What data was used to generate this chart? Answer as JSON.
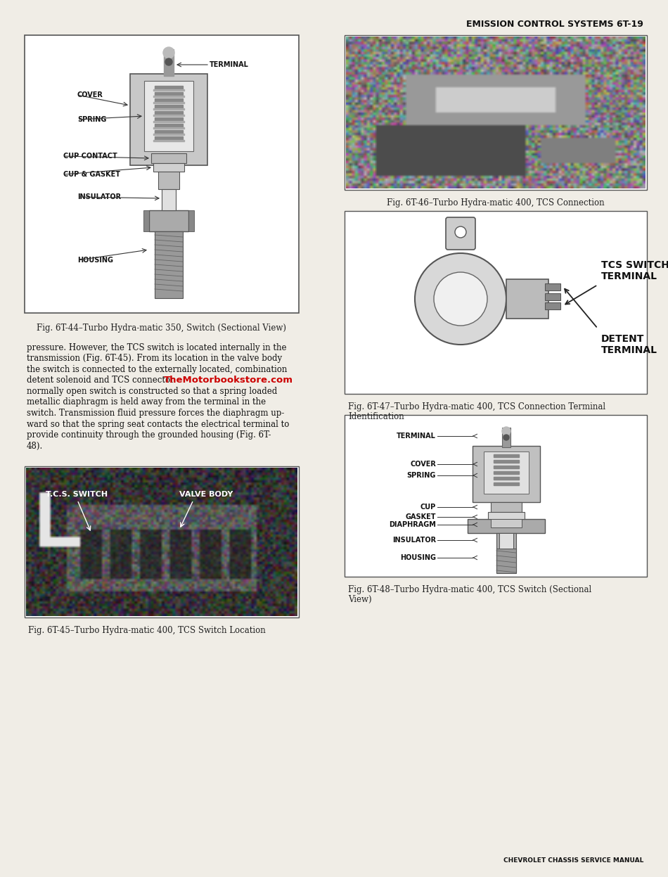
{
  "page_header": "EMISSION CONTROL SYSTEMS 6T-19",
  "page_footer": "CHEVROLET CHASSIS SERVICE MANUAL",
  "header_fontsize": 9,
  "footer_fontsize": 7,
  "bg_color": "#f0ede6",
  "text_color": "#1a1a1a",
  "watermark_text": "TheMotorbookstore.com",
  "watermark_color": "#cc0000",
  "fig44_caption": "Fig. 6T-44–Turbo Hydra-matic 350, Switch (Sectional View)",
  "fig45_caption": "Fig. 6T-45–Turbo Hydra-matic 400, TCS Switch Location",
  "fig46_caption": "Fig. 6T-46–Turbo Hydra-matic 400, TCS Connection",
  "fig47_caption_l1": "Fig. 6T-47–Turbo Hydra-matic 400, TCS Connection Terminal",
  "fig47_caption_l2": "Identification",
  "fig48_caption_l1": "Fig. 6T-48–Turbo Hydra-matic 400, TCS Switch (Sectional",
  "fig48_caption_l2": "View)",
  "body_lines": [
    "pressure. However, the TCS switch is located internally in the",
    "transmission (Fig. 6T-45). From its location in the valve body",
    "the switch is connected to the externally located, combination",
    "detent solenoid and TCS connector ",
    "normally open switch is constructed so that a spring loaded",
    "metallic diaphragm is held away from the terminal in the",
    "switch. Transmission fluid pressure forces the diaphragm up-",
    "ward so that the spring seat contacts the electrical terminal to",
    "provide continuity through the grounded housing (Fig. 6T-",
    "48)."
  ],
  "watermark_line_index": 3
}
